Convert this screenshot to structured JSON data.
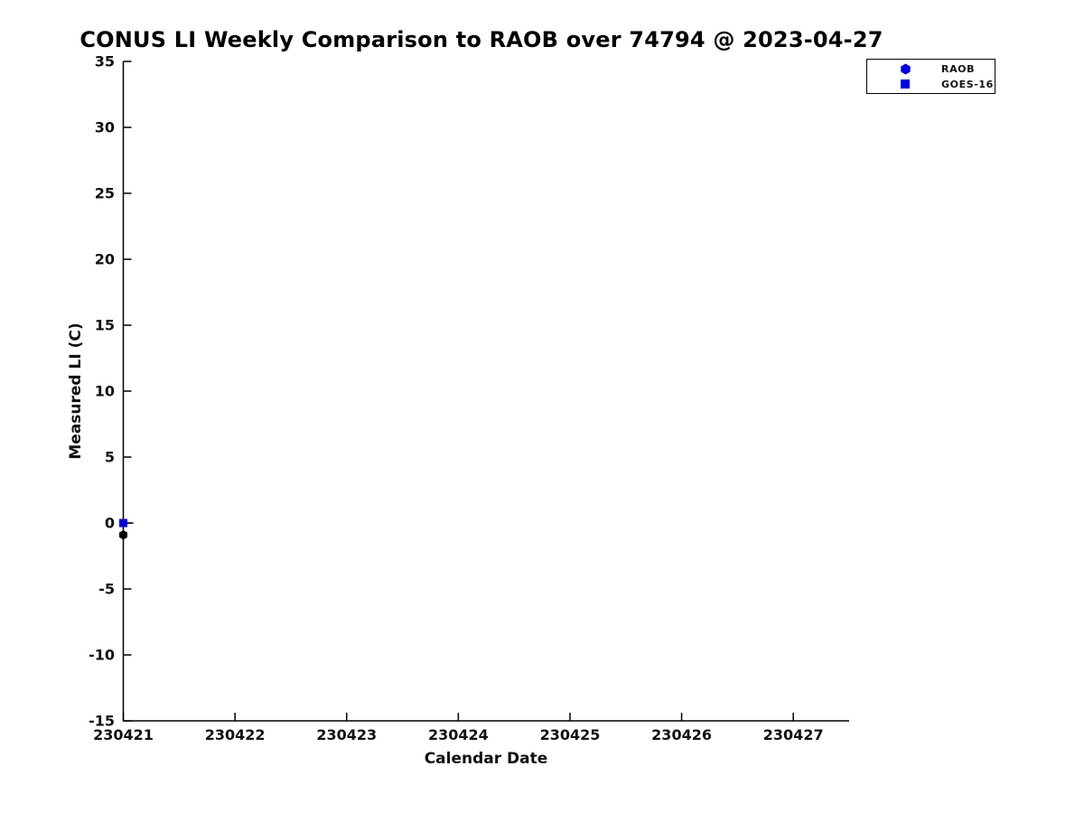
{
  "page": {
    "background": "#ffffff"
  },
  "chart_data": {
    "type": "scatter",
    "title": "CONUS LI Weekly Comparison to RAOB over 74794 @ 2023-04-27",
    "xlabel": "Calendar Date",
    "ylabel": "Measured LI (C)",
    "xlim": [
      230421,
      230427.5
    ],
    "ylim": [
      -15,
      35
    ],
    "xtick_labels": [
      "230421",
      "230422",
      "230423",
      "230424",
      "230425",
      "230426",
      "230427"
    ],
    "xtick_values": [
      230421,
      230422,
      230423,
      230424,
      230425,
      230426,
      230427
    ],
    "ytick_values": [
      35,
      30,
      25,
      20,
      15,
      10,
      5,
      0,
      -5,
      -10,
      -15
    ],
    "grid": false,
    "axis_color": "#000000",
    "text_color": "#111111",
    "accent_blue": "#0000e8",
    "legend": {
      "position": "outside-top-right",
      "entries": [
        {
          "label": "RAOB",
          "marker": "hexagon",
          "color": "#0000e8"
        },
        {
          "label": "GOES-16",
          "marker": "square",
          "color": "#0000e8"
        }
      ]
    },
    "series": [
      {
        "name": "RAOB",
        "marker": "hexagon",
        "plot_color": "#000000",
        "points": [
          {
            "x": 230421,
            "y": -0.9
          }
        ]
      },
      {
        "name": "GOES-16",
        "marker": "square",
        "plot_color": "#0000e8",
        "errorbar_color": "#111111",
        "points": [
          {
            "x": 230421,
            "y": 0.0,
            "xerr_right": 0.09
          }
        ]
      }
    ]
  }
}
